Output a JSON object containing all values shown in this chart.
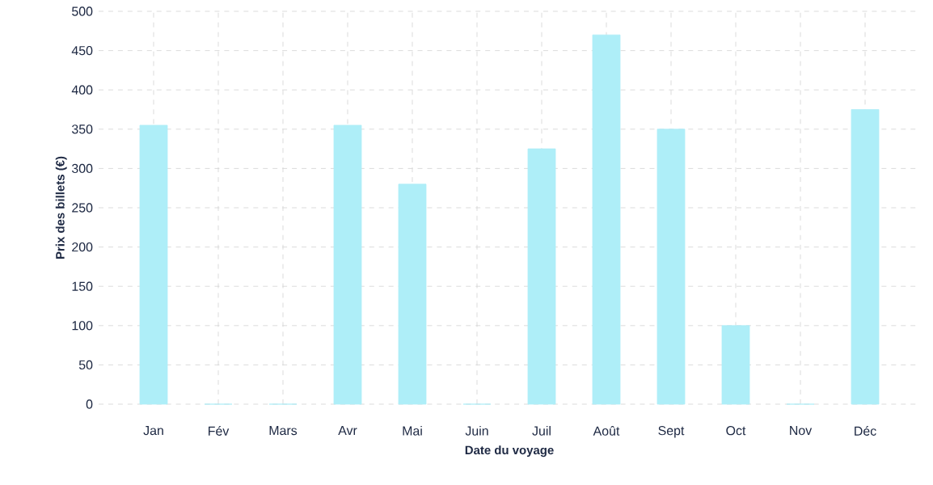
{
  "chart_data": {
    "type": "bar",
    "xlabel": "Date du voyage",
    "ylabel": "Prix des billets (€)",
    "categories": [
      "Jan",
      "Fév",
      "Mars",
      "Avr",
      "Mai",
      "Juin",
      "Juil",
      "Août",
      "Sept",
      "Oct",
      "Nov",
      "Déc"
    ],
    "values": [
      355,
      0,
      0,
      355,
      280,
      0,
      325,
      470,
      350,
      100,
      0,
      375
    ],
    "color": "#aeeef8",
    "ylim": [
      0,
      500
    ],
    "yticks": [
      0,
      50,
      100,
      150,
      200,
      250,
      300,
      350,
      400,
      450,
      500
    ],
    "grid": true
  }
}
